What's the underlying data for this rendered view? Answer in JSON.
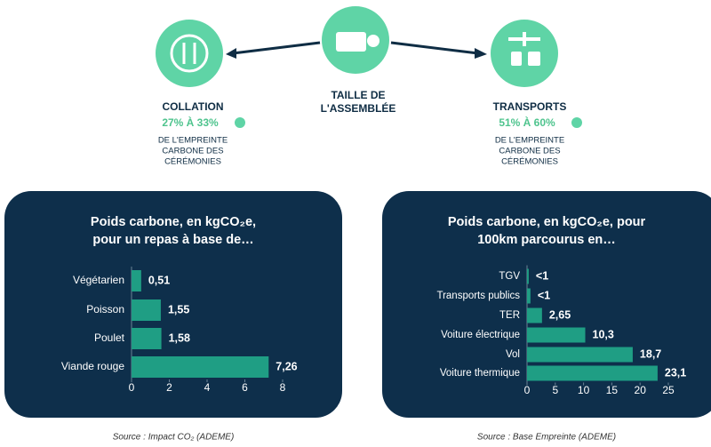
{
  "header": {
    "left": {
      "title": "COLLATION",
      "share": "27% À 33%",
      "description": [
        "DE L'EMPREINTE",
        "CARBONE DES",
        "CÉRÉMONIES"
      ]
    },
    "center": {
      "title": [
        "TAILLE DE",
        "L'ASSEMBLÉE"
      ]
    },
    "right": {
      "title": "TRANSPORTS",
      "share": "51% À 60%",
      "description": [
        "DE L'EMPREINTE",
        "CARBONE DES",
        "CÉRÉMONIES"
      ]
    }
  },
  "chart_data": [
    {
      "type": "hbar",
      "title": [
        "Poids carbone, en kgCO₂e,",
        "pour un repas à base de…"
      ],
      "categories": [
        "Végétarien",
        "Poisson",
        "Poulet",
        "Viande rouge"
      ],
      "values": [
        0.51,
        1.55,
        1.58,
        7.26
      ],
      "value_labels": [
        "0,51",
        "1,55",
        "1,58",
        "7,26"
      ],
      "color": "#1f9e84",
      "xlim": [
        0,
        8
      ],
      "xticks": [
        0,
        2,
        4,
        6,
        8
      ],
      "source": "Source : Impact CO₂ (ADEME)"
    },
    {
      "type": "hbar",
      "title": [
        "Poids carbone, en kgCO₂e, pour",
        "100km parcourus en…"
      ],
      "categories": [
        "TGV",
        "Transports publics",
        "TER",
        "Voiture électrique",
        "Vol",
        "Voiture thermique"
      ],
      "values": [
        0.3,
        0.6,
        2.65,
        10.3,
        18.7,
        23.1
      ],
      "value_labels": [
        "<1",
        "<1",
        "2,65",
        "10,3",
        "18,7",
        "23,1"
      ],
      "color": "#1f9e84",
      "xlim": [
        0,
        25
      ],
      "xticks": [
        0,
        5,
        10,
        15,
        20,
        25
      ],
      "source": "Source : Base Empreinte (ADEME)"
    }
  ]
}
